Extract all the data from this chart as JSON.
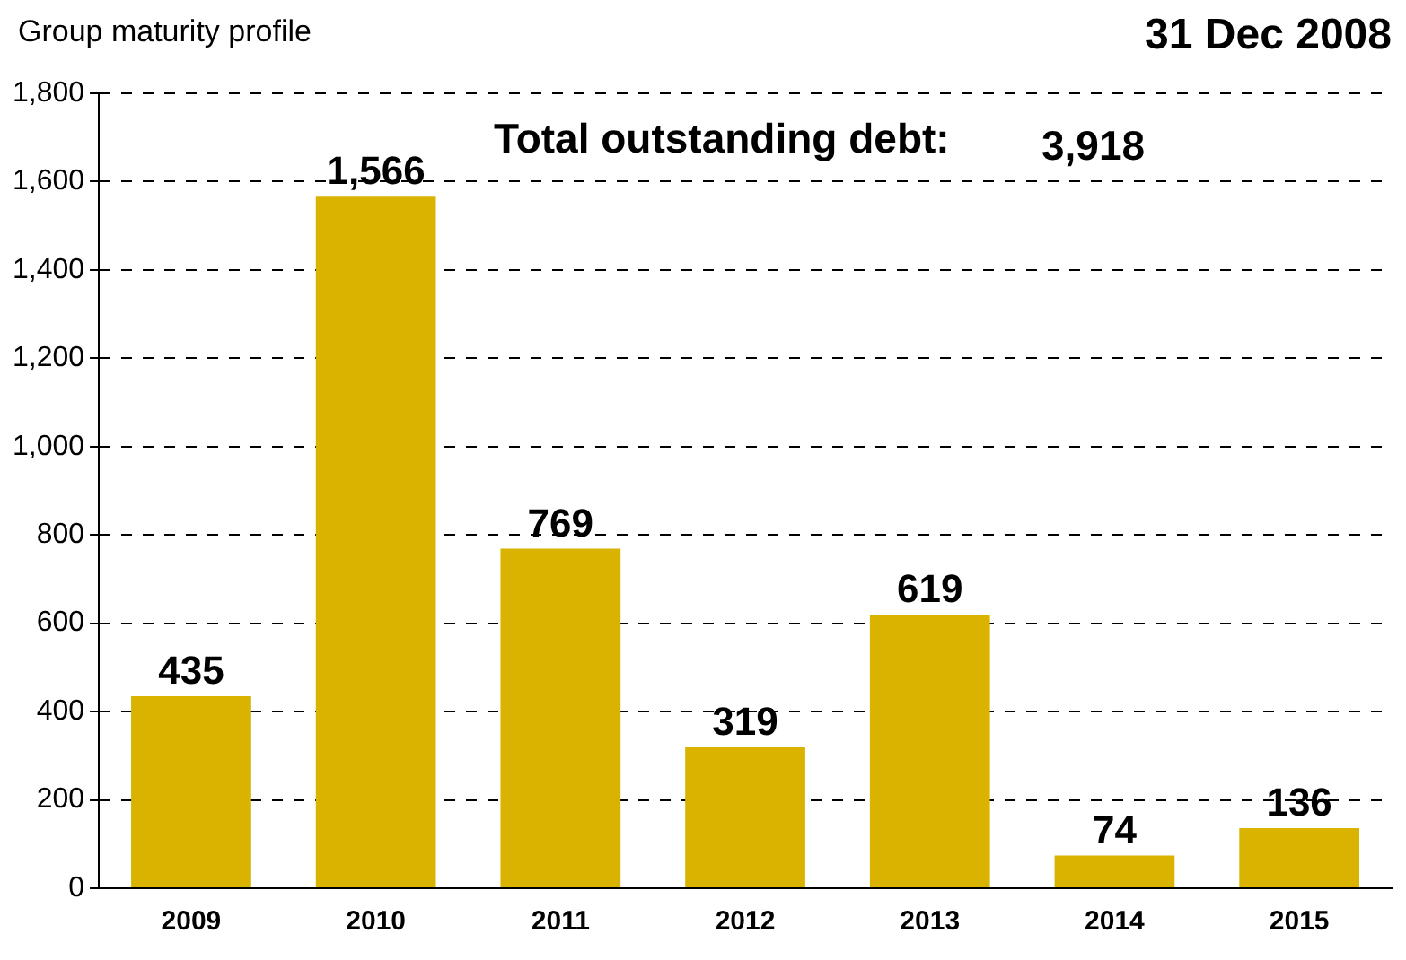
{
  "chart_data": {
    "type": "bar",
    "title": "Group maturity profile",
    "subtitle": "31 Dec 2008",
    "annotations": [
      "Total outstanding debt:",
      "3,918"
    ],
    "categories": [
      "2009",
      "2010",
      "2011",
      "2012",
      "2013",
      "2014",
      "2015"
    ],
    "values": [
      435,
      1566,
      769,
      319,
      619,
      74,
      136
    ],
    "value_labels": [
      "435",
      "1,566",
      "769",
      "319",
      "619",
      "74",
      "136"
    ],
    "color": "#d9b300",
    "ylim": [
      0,
      1800
    ],
    "yticks": [
      0,
      200,
      400,
      600,
      800,
      {
        "value": 1000,
        "label": "1,000"
      },
      {
        "value": 1200,
        "label": "1,200"
      },
      {
        "value": 1400,
        "label": "1,400"
      },
      {
        "value": 1600,
        "label": "1,600"
      },
      {
        "value": 1800,
        "label": "1,800"
      }
    ],
    "grid": "y",
    "legend": false
  }
}
